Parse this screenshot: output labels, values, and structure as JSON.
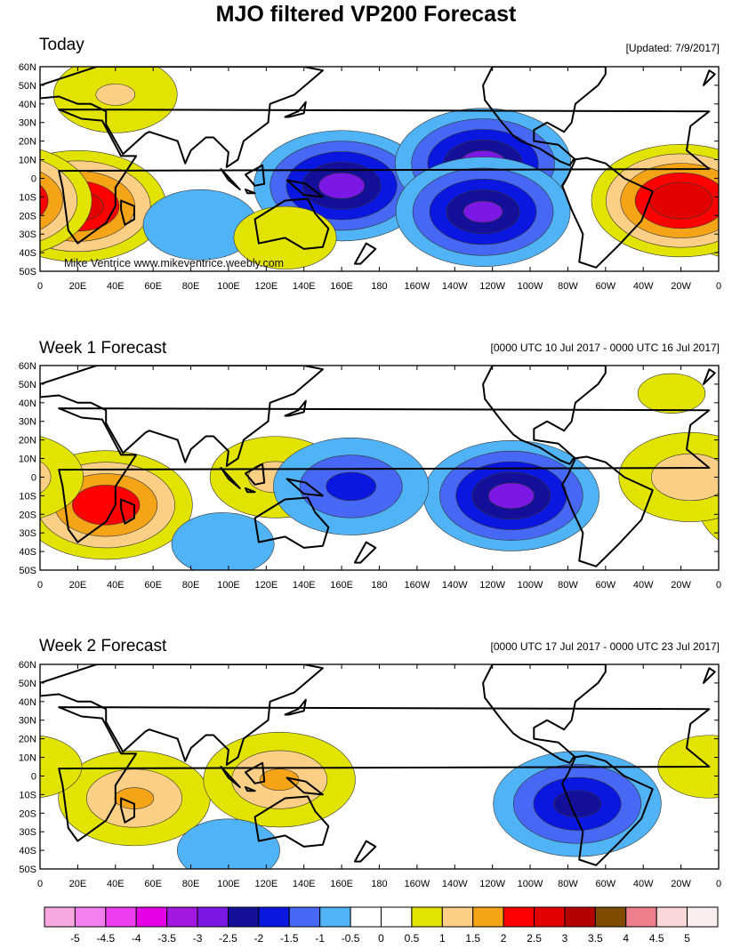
{
  "title": "MJO filtered VP200 Forecast",
  "watermark": "Mike Ventrice www.mikeventrice.weebly.com",
  "panels": [
    {
      "title": "Today",
      "subtitle": "[Updated: 7/9/2017]"
    },
    {
      "title": "Week 1 Forecast",
      "subtitle": "[0000 UTC 10 Jul 2017 - 0000 UTC 16 Jul 2017]"
    },
    {
      "title": "Week 2 Forecast",
      "subtitle": "[0000 UTC 17 Jul 2017 - 0000 UTC 23 Jul 2017]"
    }
  ],
  "chart_data": {
    "type": "heatmap",
    "variable": "MJO filtered 200-hPa velocity potential anomaly",
    "lat_ticks": [
      "60N",
      "50N",
      "40N",
      "30N",
      "20N",
      "10N",
      "0",
      "10S",
      "20S",
      "30S",
      "40S",
      "50S"
    ],
    "lon_ticks": [
      "0",
      "20E",
      "40E",
      "60E",
      "80E",
      "100E",
      "120E",
      "140E",
      "160E",
      "180",
      "160W",
      "140W",
      "120W",
      "100W",
      "80W",
      "60W",
      "40W",
      "20W",
      "0"
    ],
    "lat_range": [
      -50,
      60
    ],
    "lon_range": [
      0,
      360
    ],
    "colorbar": {
      "labels": [
        "-5",
        "-4.5",
        "-4",
        "-3.5",
        "-3",
        "-2.5",
        "-2",
        "-1.5",
        "-1",
        "-0.5",
        "0",
        "0.5",
        "1",
        "1.5",
        "2",
        "2.5",
        "3",
        "3.5",
        "4",
        "4.5",
        "5"
      ],
      "colors": [
        "#f7a8e0",
        "#f37ff0",
        "#ee3df0",
        "#e300e6",
        "#a218df",
        "#7b18e6",
        "#140f9b",
        "#0a17e0",
        "#4668f4",
        "#4fb3f6",
        "#ffffff",
        "#ffffff",
        "#e3e301",
        "#fbcf85",
        "#f6a417",
        "#ff0000",
        "#e20000",
        "#b30000",
        "#7f4c00",
        "#ef7f8c",
        "#fcd7d9",
        "#fdeeee"
      ]
    },
    "fields": [
      {
        "panel": "Today",
        "centers": [
          {
            "lon": 20,
            "lat": -15,
            "value": 2.7
          },
          {
            "lon": 340,
            "lat": -12,
            "value": 2.9
          },
          {
            "lon": 40,
            "lat": 45,
            "value": 1.0
          },
          {
            "lon": 160,
            "lat": -4,
            "value": -2.6
          },
          {
            "lon": 235,
            "lat": 8,
            "value": -2.6
          },
          {
            "lon": 235,
            "lat": -18,
            "value": -2.5
          },
          {
            "lon": 85,
            "lat": -25,
            "value": -0.9
          },
          {
            "lon": 130,
            "lat": -32,
            "value": 0.8
          }
        ]
      },
      {
        "panel": "Week 1 Forecast",
        "centers": [
          {
            "lon": 35,
            "lat": -15,
            "value": 2.4
          },
          {
            "lon": 125,
            "lat": 0,
            "value": 1.1
          },
          {
            "lon": 345,
            "lat": 0,
            "value": 1.3
          },
          {
            "lon": 250,
            "lat": -10,
            "value": -2.6
          },
          {
            "lon": 165,
            "lat": -5,
            "value": -1.6
          },
          {
            "lon": 97,
            "lat": -36,
            "value": -0.8
          },
          {
            "lon": 335,
            "lat": 45,
            "value": 0.6
          }
        ]
      },
      {
        "panel": "Week 2 Forecast",
        "centers": [
          {
            "lon": 50,
            "lat": -12,
            "value": 1.5
          },
          {
            "lon": 127,
            "lat": -2,
            "value": 1.5
          },
          {
            "lon": 285,
            "lat": -15,
            "value": -2.1
          },
          {
            "lon": 100,
            "lat": -40,
            "value": -0.8
          },
          {
            "lon": 355,
            "lat": 5,
            "value": 0.8
          }
        ]
      }
    ]
  }
}
